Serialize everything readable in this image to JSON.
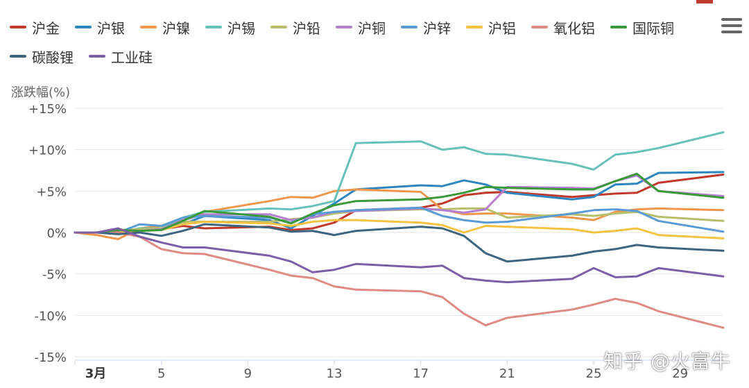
{
  "chart_data": {
    "type": "line",
    "ylabel": "涨跌幅(%)",
    "ylim": [
      -15,
      15
    ],
    "y_ticks": [
      15,
      10,
      5,
      0,
      -5,
      -10,
      -15
    ],
    "y_tick_labels": [
      "+15%",
      "+10%",
      "+5%",
      "0%",
      "-5%",
      "-10%",
      "-15%"
    ],
    "xlim": [
      "2023-03-01",
      "2023-03-31"
    ],
    "x_ticks": [
      "2023-03-01",
      "2023-03-05",
      "2023-03-09",
      "2023-03-13",
      "2023-03-17",
      "2023-03-21",
      "2023-03-25",
      "2023-03-29"
    ],
    "x_tick_labels": [
      "3月",
      "5",
      "9",
      "13",
      "17",
      "21",
      "25",
      "29"
    ],
    "grid": true,
    "legend_position": "top",
    "x": [
      "2023-03-01",
      "2023-03-02",
      "2023-03-03",
      "2023-03-04",
      "2023-03-05",
      "2023-03-06",
      "2023-03-07",
      "2023-03-10",
      "2023-03-11",
      "2023-03-12",
      "2023-03-13",
      "2023-03-14",
      "2023-03-17",
      "2023-03-18",
      "2023-03-19",
      "2023-03-20",
      "2023-03-21",
      "2023-03-24",
      "2023-03-25",
      "2023-03-26",
      "2023-03-27",
      "2023-03-28",
      "2023-03-31"
    ],
    "series": [
      {
        "name": "沪金",
        "color": "#c0392b",
        "values": [
          0,
          0,
          0.2,
          0.3,
          0.4,
          0.8,
          0.5,
          0.7,
          0.3,
          0.5,
          1.2,
          2.7,
          3.0,
          3.5,
          4.5,
          4.8,
          4.9,
          4.3,
          4.5,
          4.7,
          4.8,
          6.0,
          7.0
        ]
      },
      {
        "name": "沪银",
        "color": "#2e86c1",
        "values": [
          0,
          0,
          0,
          0.5,
          0.5,
          1.0,
          2.0,
          1.5,
          0.5,
          2.0,
          3.5,
          5.2,
          5.7,
          5.6,
          6.3,
          5.8,
          4.8,
          4.0,
          4.3,
          5.8,
          5.9,
          7.2,
          7.3
        ]
      },
      {
        "name": "沪镍",
        "color": "#f0974d",
        "values": [
          0,
          -0.3,
          -0.8,
          0.5,
          0.8,
          1.5,
          2.5,
          3.8,
          4.3,
          4.2,
          5.0,
          5.2,
          4.9,
          2.8,
          2.2,
          2.3,
          2.3,
          1.8,
          1.5,
          2.5,
          2.8,
          2.9,
          2.7
        ]
      },
      {
        "name": "沪锡",
        "color": "#66c2b9",
        "values": [
          0,
          0,
          0,
          0.5,
          0.5,
          1.8,
          2.5,
          2.9,
          2.8,
          3.2,
          3.8,
          10.8,
          11.0,
          10.0,
          10.3,
          9.5,
          9.4,
          8.3,
          7.6,
          9.4,
          9.7,
          10.2,
          12.1
        ]
      },
      {
        "name": "沪铅",
        "color": "#b8bf6c",
        "values": [
          0,
          0,
          0.3,
          0.4,
          0.5,
          1.3,
          1.3,
          1.3,
          1.6,
          1.8,
          2.3,
          2.6,
          2.8,
          2.8,
          2.9,
          2.9,
          1.8,
          2.2,
          2.0,
          2.3,
          2.5,
          1.9,
          1.4
        ]
      },
      {
        "name": "沪铜",
        "color": "#b57fd1",
        "values": [
          0,
          0,
          0.3,
          0.2,
          0.4,
          1.5,
          2.2,
          2.2,
          1.5,
          1.8,
          2.5,
          2.6,
          2.9,
          2.7,
          2.4,
          2.8,
          5.5,
          5.4,
          5.3,
          6.2,
          6.9,
          5.0,
          4.4
        ]
      },
      {
        "name": "沪锌",
        "color": "#5b9bd5",
        "values": [
          0,
          0,
          0,
          1.0,
          0.8,
          1.8,
          2.0,
          1.8,
          1.2,
          2.2,
          2.5,
          2.7,
          3.0,
          2.0,
          1.5,
          1.2,
          1.3,
          2.3,
          2.7,
          2.8,
          2.6,
          1.4,
          0.1
        ]
      },
      {
        "name": "沪铝",
        "color": "#f5c242",
        "values": [
          0,
          0,
          0,
          0.2,
          0.3,
          1.0,
          1.3,
          1.1,
          0.8,
          1.3,
          1.5,
          1.5,
          1.2,
          0.9,
          0,
          0.8,
          0.7,
          0.4,
          0,
          0.2,
          0.5,
          -0.3,
          -0.7
        ]
      },
      {
        "name": "氧化铝",
        "color": "#e08a84",
        "values": [
          0,
          0,
          0,
          -0.5,
          -2.0,
          -2.5,
          -2.6,
          -4.5,
          -5.2,
          -5.5,
          -6.5,
          -6.9,
          -7.1,
          -7.8,
          -9.8,
          -11.2,
          -10.3,
          -9.3,
          -8.7,
          -8.0,
          -8.5,
          -9.5,
          -11.5
        ]
      },
      {
        "name": "国际铜",
        "color": "#3a9a3a",
        "values": [
          0,
          0,
          0.3,
          0.2,
          0.3,
          1.4,
          2.6,
          1.9,
          1.1,
          2.3,
          3.3,
          3.8,
          4.0,
          4.3,
          4.8,
          5.5,
          5.4,
          5.2,
          5.2,
          6.2,
          7.1,
          5.0,
          4.2
        ]
      },
      {
        "name": "碳酸锂",
        "color": "#3d6580",
        "values": [
          0,
          0,
          -0.2,
          0,
          -0.4,
          0.2,
          1.0,
          0.6,
          0.1,
          0.2,
          -0.3,
          0.2,
          0.7,
          0.5,
          -0.4,
          -2.5,
          -3.5,
          -2.8,
          -2.3,
          -2.0,
          -1.5,
          -1.8,
          -2.2
        ]
      },
      {
        "name": "工业硅",
        "color": "#7b5ea7",
        "values": [
          0,
          0,
          0.5,
          -0.5,
          -1.2,
          -1.8,
          -1.8,
          -2.8,
          -3.5,
          -4.8,
          -4.5,
          -3.8,
          -4.2,
          -4.0,
          -5.5,
          -5.8,
          -6.0,
          -5.6,
          -4.3,
          -5.4,
          -5.3,
          -4.3,
          -5.3
        ]
      }
    ]
  },
  "toolbar": {
    "menu_icon": "hamburger-menu-icon"
  },
  "watermark": {
    "text": "知乎 @火富牛"
  }
}
